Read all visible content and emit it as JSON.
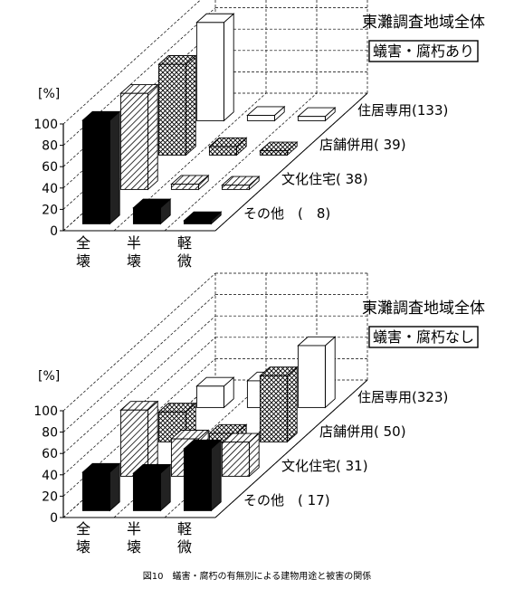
{
  "caption": "図10　蟻害・腐朽の有無別による建物用途と被害の関係",
  "patterns": {
    "白": "#ffffff",
    "格子": "crosshatch",
    "斜線": "diagonal-hatch",
    "黒": "#000000"
  },
  "chart_data": [
    {
      "type": "bar",
      "subtype": "3d-bar",
      "title": "東灘調査地域全体",
      "subtitle": "蟻害・腐朽あり",
      "ylabel": "[%]",
      "ylim": [
        0,
        100
      ],
      "yticks": [
        "0",
        "20",
        "40",
        "60",
        "80",
        "100"
      ],
      "grid": true,
      "categories": [
        "全壊",
        "半壊",
        "軽微"
      ],
      "series": [
        {
          "name": "住居専用(133)",
          "count": "133",
          "pattern": "白",
          "values": [
            92,
            5,
            4
          ]
        },
        {
          "name": "店舗併用( 39)",
          "count": " 39",
          "pattern": "格子",
          "values": [
            85,
            8,
            4
          ]
        },
        {
          "name": "文化住宅( 38)",
          "count": " 38",
          "pattern": "斜線",
          "values": [
            90,
            5,
            4
          ]
        },
        {
          "name": "その他　(　8)",
          "count": "  8",
          "pattern": "黒",
          "values": [
            97,
            15,
            3
          ]
        }
      ]
    },
    {
      "type": "bar",
      "subtype": "3d-bar",
      "title": "東灘調査地域全体",
      "subtitle": "蟻害・腐朽なし",
      "ylabel": "[%]",
      "ylim": [
        0,
        100
      ],
      "yticks": [
        "0",
        "20",
        "40",
        "60",
        "80",
        "100"
      ],
      "grid": true,
      "categories": [
        "全壊",
        "半壊",
        "軽微"
      ],
      "series": [
        {
          "name": "住居専用(323)",
          "count": "323",
          "pattern": "白",
          "values": [
            20,
            25,
            58
          ]
        },
        {
          "name": "店舗併用( 50)",
          "count": " 50",
          "pattern": "格子",
          "values": [
            28,
            8,
            62
          ]
        },
        {
          "name": "文化住宅( 31)",
          "count": " 31",
          "pattern": "斜線",
          "values": [
            62,
            35,
            32
          ]
        },
        {
          "name": "その他　( 17)",
          "count": " 17",
          "pattern": "黒",
          "values": [
            36,
            35,
            58
          ]
        }
      ]
    }
  ]
}
